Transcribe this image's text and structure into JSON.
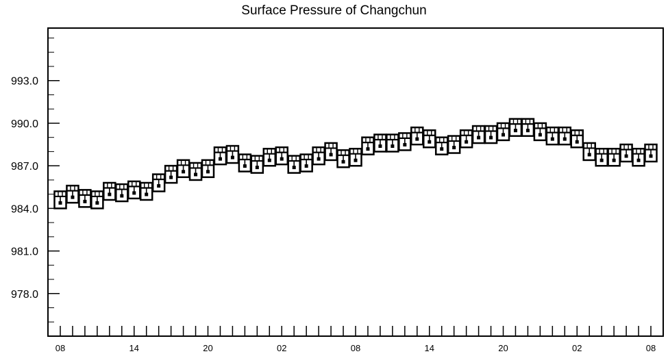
{
  "chart_data": {
    "type": "box",
    "title": "Surface Pressure of Changchun",
    "xlabel": "",
    "ylabel": "",
    "ylim": [
      975.0,
      996.7
    ],
    "yticks": [
      978.0,
      981.0,
      984.0,
      987.0,
      990.0,
      993.0
    ],
    "ytick_labels": [
      "978.0",
      "981.0",
      "984.0",
      "987.0",
      "990.0",
      "993.0"
    ],
    "xtick_labels": [
      "08",
      "14",
      "20",
      "02",
      "08",
      "14",
      "20",
      "02",
      "08"
    ],
    "xtick_hours": [
      0,
      6,
      12,
      18,
      24,
      30,
      36,
      42,
      48
    ],
    "time_step_hours": 1,
    "grid": false,
    "series": [
      {
        "values": [
          984.6,
          985.0,
          984.7,
          984.6,
          985.2,
          985.1,
          985.3,
          985.2,
          985.8,
          986.4,
          986.8,
          986.6,
          986.8,
          987.7,
          987.8,
          987.2,
          987.1,
          987.6,
          987.7,
          987.1,
          987.2,
          987.7,
          988.0,
          987.5,
          987.6,
          988.4,
          988.6,
          988.6,
          988.7,
          989.1,
          988.9,
          988.4,
          988.5,
          988.9,
          989.2,
          989.2,
          989.4,
          989.7,
          989.7,
          989.4,
          989.1,
          989.1,
          988.9,
          988.0,
          987.6,
          987.6,
          987.9,
          987.6,
          987.9
        ]
      }
    ]
  }
}
